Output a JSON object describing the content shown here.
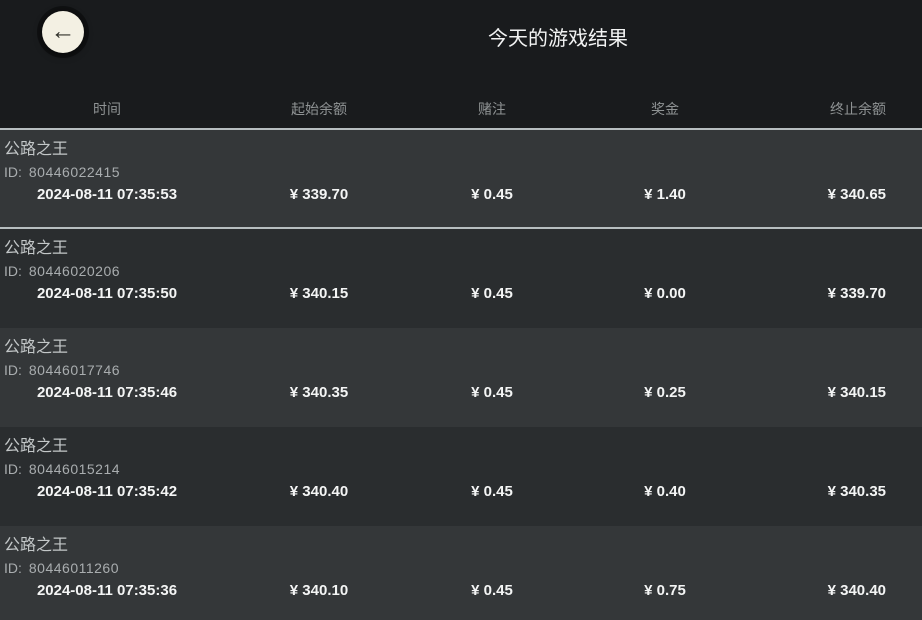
{
  "header": {
    "title": "今天的游戏结果",
    "back_icon": "←"
  },
  "table": {
    "columns": [
      "时间",
      "起始余额",
      "赌注",
      "奖金",
      "终止余额"
    ],
    "id_label": "ID:",
    "rows": [
      {
        "game": "公路之王",
        "id": "80446022415",
        "time": "2024-08-11 07:35:53",
        "start_balance": "¥ 339.70",
        "bet": "¥ 0.45",
        "prize": "¥ 1.40",
        "end_balance": "¥ 340.65"
      },
      {
        "game": "公路之王",
        "id": "80446020206",
        "time": "2024-08-11 07:35:50",
        "start_balance": "¥ 340.15",
        "bet": "¥ 0.45",
        "prize": "¥ 0.00",
        "end_balance": "¥ 339.70"
      },
      {
        "game": "公路之王",
        "id": "80446017746",
        "time": "2024-08-11 07:35:46",
        "start_balance": "¥ 340.35",
        "bet": "¥ 0.45",
        "prize": "¥ 0.25",
        "end_balance": "¥ 340.15"
      },
      {
        "game": "公路之王",
        "id": "80446015214",
        "time": "2024-08-11 07:35:42",
        "start_balance": "¥ 340.40",
        "bet": "¥ 0.45",
        "prize": "¥ 0.40",
        "end_balance": "¥ 340.35"
      },
      {
        "game": "公路之王",
        "id": "80446011260",
        "time": "2024-08-11 07:35:36",
        "start_balance": "¥ 340.10",
        "bet": "¥ 0.45",
        "prize": "¥ 0.75",
        "end_balance": "¥ 340.40"
      }
    ]
  },
  "colors": {
    "page_bg": "#191b1d",
    "row_light_bg": "#343739",
    "row_dark_bg": "#2a2d2f",
    "divider": "#b7bec0",
    "back_button_bg": "#f3f0e3",
    "value_text": "#f4f5f5",
    "muted_text": "#8f9394"
  }
}
